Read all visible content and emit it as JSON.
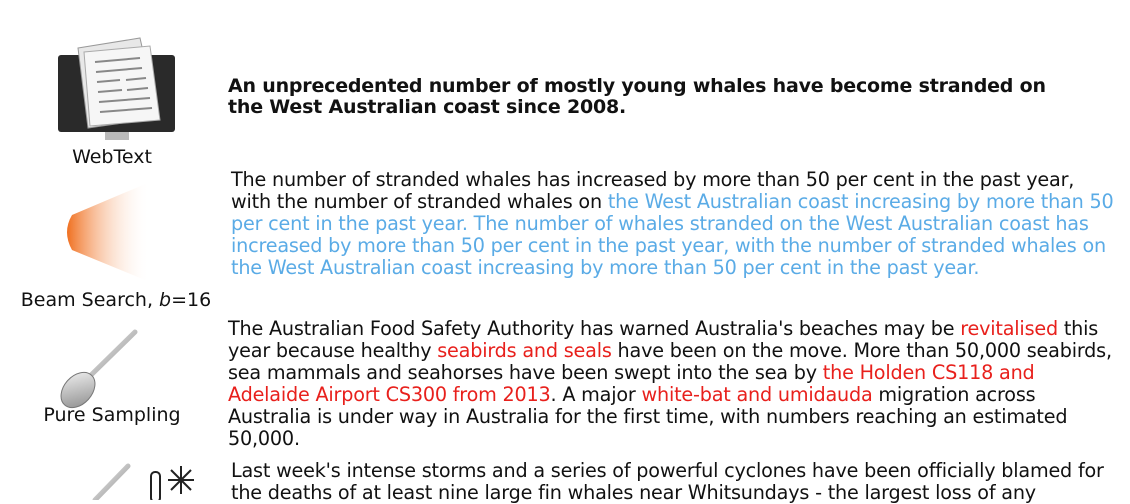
{
  "rows": [
    {
      "label": [
        {
          "text": "WebText"
        }
      ],
      "text": [
        {
          "text": "An unprecedented number of mostly young whales have become stranded on the West Australian coast since 2008.",
          "color": "#111111"
        }
      ]
    },
    {
      "label": [
        {
          "text": "Beam Search, "
        },
        {
          "text": "b"
        },
        {
          "text": "=16"
        }
      ],
      "text": [
        {
          "text": "The number of stranded whales has increased by more than 50 per cent in the past year, with the number of stranded whales on ",
          "color": "#111111"
        },
        {
          "text": "the West Australian coast increasing by more than 50 per cent in the past year. The number of whales stranded on the West Australian coast has increased by more than 50 per cent in the past year, with the number of stranded whales on the West Australian coast increasing by more than 50 per cent in the past year.",
          "color": "#5aabe6"
        }
      ]
    },
    {
      "label": [
        {
          "text": "Pure Sampling"
        }
      ],
      "text": [
        {
          "text": "The Australian Food Safety Authority has warned Australia's beaches may be ",
          "color": "#111111"
        },
        {
          "text": "revitalised",
          "color": "#e8201c"
        },
        {
          "text": " this year because healthy ",
          "color": "#111111"
        },
        {
          "text": "seabirds and seals",
          "color": "#e8201c"
        },
        {
          "text": " have been on the move. More than 50,000 seabirds, sea mammals and seahorses have been swept into the sea by ",
          "color": "#111111"
        },
        {
          "text": "the Holden CS118 and Adelaide Airport CS300 from 2013",
          "color": "#e8201c"
        },
        {
          "text": ". A major ",
          "color": "#111111"
        },
        {
          "text": "white-bat and umidauda",
          "color": "#e8201c"
        },
        {
          "text": " migration across Australia is under way in Australia for the first time, with numbers reaching an estimated 50,000.",
          "color": "#111111"
        }
      ]
    },
    {
      "text": [
        {
          "text": "Last week's intense storms and a series of powerful cyclones have been officially blamed for the deaths of at least nine large fin whales near Whitsundays - the largest loss of any",
          "color": "#111111"
        }
      ]
    }
  ]
}
